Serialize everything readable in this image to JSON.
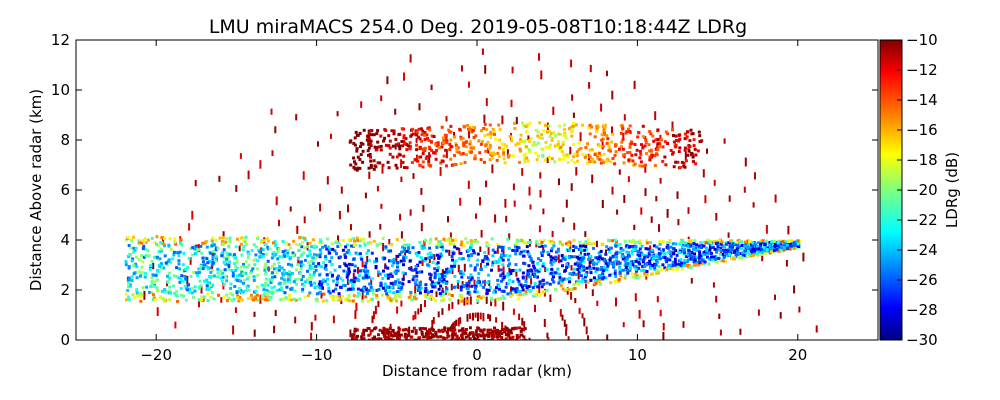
{
  "chart_data": {
    "type": "heatmap",
    "title": "LMU miraMACS 254.0 Deg. 2019-05-08T10:18:44Z  LDRg",
    "xlabel": "Distance from radar (km)",
    "ylabel": "Distance Above radar  (km)",
    "xlim": [
      -25,
      25
    ],
    "ylim": [
      0,
      12
    ],
    "xticks": [
      -20,
      -10,
      0,
      10,
      20
    ],
    "yticks": [
      0,
      2,
      4,
      6,
      8,
      10,
      12
    ],
    "grid": false,
    "colorbar": {
      "label": "LDRg (dB)",
      "range": [
        -30,
        -10
      ],
      "ticks": [
        -10,
        -12,
        -14,
        -16,
        -18,
        -20,
        -22,
        -24,
        -26,
        -28,
        -30
      ],
      "colormap": "jet"
    },
    "scan_elevation_deg": 254.0,
    "regions": [
      {
        "name": "main-cloud-layer",
        "x_range": [
          -22,
          20
        ],
        "y_range": [
          1.5,
          4.3
        ],
        "ldr_range": [
          -30,
          -16
        ],
        "note": "broad layer, green/yellow top edge, blue core"
      },
      {
        "name": "upper-cloud-layer",
        "x_range": [
          -8,
          14
        ],
        "y_range": [
          7.0,
          8.8
        ],
        "ldr_range": [
          -20,
          -10
        ]
      },
      {
        "name": "near-ground-band",
        "x_range": [
          -8,
          4
        ],
        "y_range": [
          0,
          0.6
        ],
        "ldr_range": [
          -12,
          -10
        ]
      },
      {
        "name": "sparse-scan-arcs",
        "x_range": [
          -21,
          21
        ],
        "y_range": [
          0,
          11.5
        ],
        "ldr_range": [
          -12,
          -10
        ]
      }
    ]
  },
  "colors": {
    "jet": [
      "#00007f",
      "#0000ff",
      "#007fff",
      "#00ffff",
      "#7fff7f",
      "#ffff00",
      "#ff7f00",
      "#ff0000",
      "#7f0000"
    ]
  }
}
